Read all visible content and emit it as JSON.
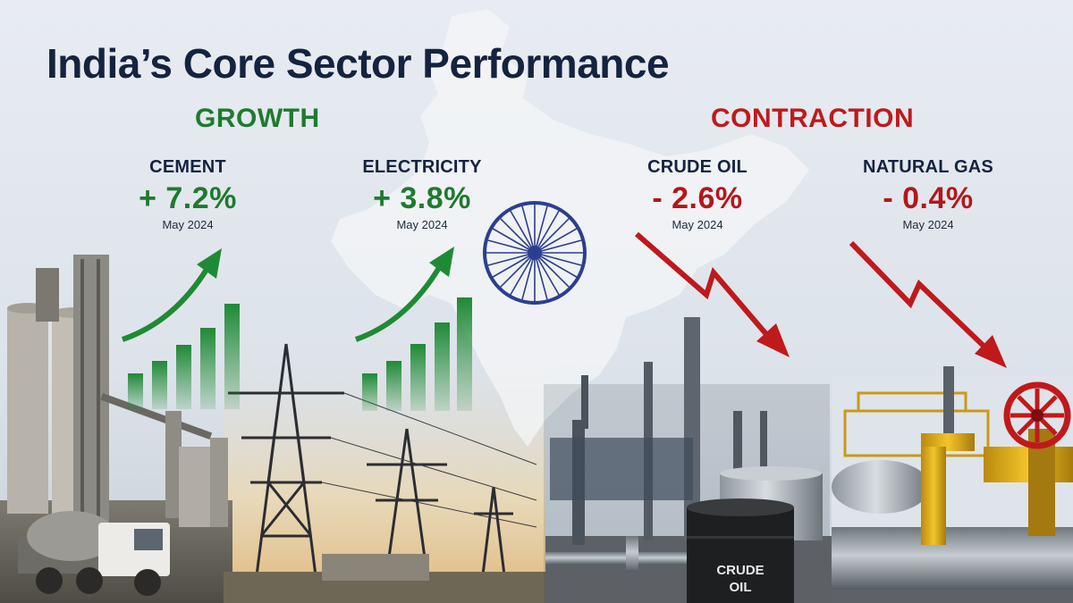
{
  "title": "India’s Core Sector Performance",
  "sections": {
    "growth": {
      "label": "GROWTH",
      "color": "#1f7a2e"
    },
    "contraction": {
      "label": "CONTRACTION",
      "color": "#c0191c"
    }
  },
  "indicators": {
    "cement": {
      "label": "CEMENT",
      "value": "+ 7.2%",
      "date": "May 2024"
    },
    "electricity": {
      "label": "ELECTRICITY",
      "value": "+ 3.8%",
      "date": "May 2024"
    },
    "crude_oil": {
      "label": "CRUDE OIL",
      "value": "- 2.6%",
      "date": "May 2024"
    },
    "natural_gas": {
      "label": "NATURAL GAS",
      "value": "- 0.4%",
      "date": "May 2024"
    }
  },
  "barrel_label": {
    "line1": "CRUDE",
    "line2": "OIL"
  },
  "icons": [
    "ashoka-chakra-icon",
    "up-trend-arrow-icon",
    "down-trend-arrow-icon"
  ]
}
